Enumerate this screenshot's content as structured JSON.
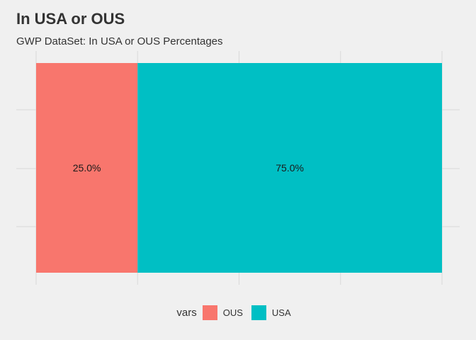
{
  "chart_data": {
    "type": "bar",
    "orientation": "horizontal-stacked",
    "title": "In USA or OUS",
    "subtitle": "GWP DataSet: In USA or OUS Percentages",
    "legend": {
      "title": "vars",
      "placement": "bottom"
    },
    "grid": true,
    "series": [
      {
        "name": "OUS",
        "value": 25.0,
        "label": "25.0%",
        "color": "#F8766D"
      },
      {
        "name": "USA",
        "value": 75.0,
        "label": "75.0%",
        "color": "#00BFC4"
      }
    ],
    "xlim": [
      0,
      100
    ]
  }
}
